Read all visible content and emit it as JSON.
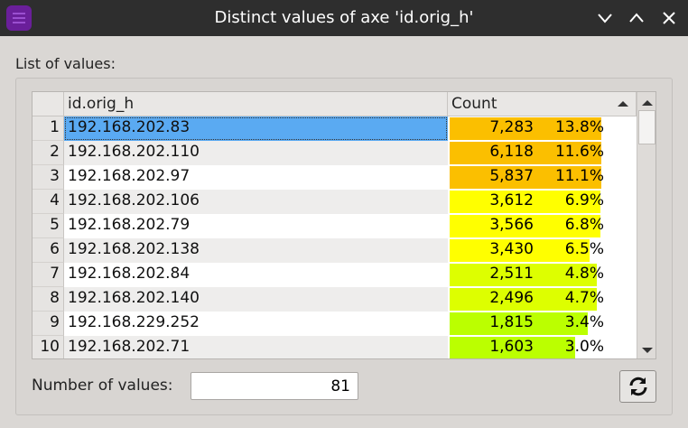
{
  "window": {
    "title": "Distinct values of axe 'id.orig_h'"
  },
  "group": {
    "label": "List of values:"
  },
  "table": {
    "headers": [
      "id.orig_h",
      "Count"
    ],
    "rows": [
      {
        "index": "1",
        "value": "192.168.202.83",
        "count": "7,283",
        "percent": "13.8%",
        "color": "#fbbf00",
        "selected": true
      },
      {
        "index": "2",
        "value": "192.168.202.110",
        "count": "6,118",
        "percent": "11.6%",
        "color": "#fbbf00",
        "selected": false
      },
      {
        "index": "3",
        "value": "192.168.202.97",
        "count": "5,837",
        "percent": "11.1%",
        "color": "#fbbf00",
        "selected": false
      },
      {
        "index": "4",
        "value": "192.168.202.106",
        "count": "3,612",
        "percent": "6.9%",
        "color": "#ffff00",
        "selected": false
      },
      {
        "index": "5",
        "value": "192.168.202.79",
        "count": "3,566",
        "percent": "6.8%",
        "color": "#ffff00",
        "selected": false
      },
      {
        "index": "6",
        "value": "192.168.202.138",
        "count": "3,430",
        "percent": "6.5%",
        "color": "#ffff00",
        "selected": false
      },
      {
        "index": "7",
        "value": "192.168.202.84",
        "count": "2,511",
        "percent": "4.8%",
        "color": "#ddff00",
        "selected": false
      },
      {
        "index": "8",
        "value": "192.168.202.140",
        "count": "2,496",
        "percent": "4.7%",
        "color": "#ddff00",
        "selected": false
      },
      {
        "index": "9",
        "value": "192.168.229.252",
        "count": "1,815",
        "percent": "3.4%",
        "color": "#bbff00",
        "selected": false
      },
      {
        "index": "10",
        "value": "192.168.202.71",
        "count": "1,603",
        "percent": "3.0%",
        "color": "#bbff00",
        "selected": false
      }
    ]
  },
  "footer": {
    "label": "Number of values:",
    "value": "81"
  }
}
